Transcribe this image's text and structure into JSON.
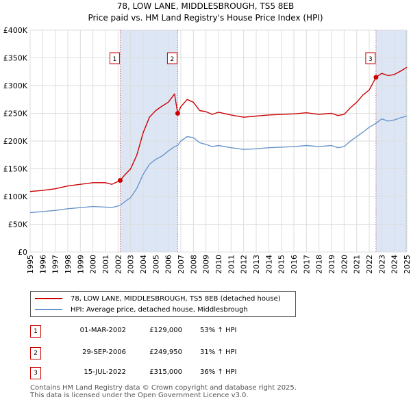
{
  "chart_data": {
    "type": "line",
    "title": "78, LOW LANE, MIDDLESBROUGH, TS5 8EB",
    "subtitle": "Price paid vs. HM Land Registry's House Price Index (HPI)",
    "xlim": [
      1995,
      2025
    ],
    "ylim": [
      0,
      400000
    ],
    "yticks": [
      0,
      50000,
      100000,
      150000,
      200000,
      250000,
      300000,
      350000,
      400000
    ],
    "ytick_labels": [
      "£0",
      "£50K",
      "£100K",
      "£150K",
      "£200K",
      "£250K",
      "£300K",
      "£350K",
      "£400K"
    ],
    "xticks": [
      1995,
      1996,
      1997,
      1998,
      1999,
      2000,
      2001,
      2002,
      2003,
      2004,
      2005,
      2006,
      2007,
      2008,
      2009,
      2010,
      2011,
      2012,
      2013,
      2014,
      2015,
      2016,
      2017,
      2018,
      2019,
      2020,
      2021,
      2022,
      2023,
      2024,
      2025
    ],
    "xtick_labels": [
      "1995",
      "1996",
      "1997",
      "1998",
      "1999",
      "2000",
      "2001",
      "2002",
      "2003",
      "2004",
      "2005",
      "2006",
      "2007",
      "2008",
      "2009",
      "2010",
      "2011",
      "2012",
      "2013",
      "2014",
      "2015",
      "2016",
      "2017",
      "2018",
      "2019",
      "2020",
      "2021",
      "2022",
      "2023",
      "2024",
      "2025"
    ],
    "grid": true,
    "shaded_regions": [
      {
        "from": 2002.17,
        "to": 2006.75
      },
      {
        "from": 2022.54,
        "to": 2025.0
      }
    ],
    "hatched_region": {
      "from": 2024.9,
      "to": 2025.0
    },
    "series": [
      {
        "name": "78, LOW LANE, MIDDLESBROUGH, TS5 8EB (detached house)",
        "color": "#cc0000",
        "x": [
          1995,
          1996,
          1997,
          1998,
          1999,
          2000,
          2001,
          2001.5,
          2002.17,
          2002.5,
          2003,
          2003.5,
          2004,
          2004.5,
          2005,
          2005.5,
          2006,
          2006.5,
          2006.75,
          2007,
          2007.5,
          2008,
          2008.5,
          2009,
          2009.5,
          2010,
          2011,
          2012,
          2013,
          2014,
          2015,
          2016,
          2017,
          2018,
          2019,
          2019.5,
          2020,
          2020.5,
          2021,
          2021.5,
          2022,
          2022.54,
          2023,
          2023.5,
          2024,
          2024.5,
          2025
        ],
        "y": [
          109000,
          111000,
          114000,
          119000,
          122000,
          125000,
          125000,
          122000,
          129000,
          138000,
          150000,
          175000,
          215000,
          243000,
          255000,
          263000,
          270000,
          285000,
          249950,
          262000,
          275000,
          270000,
          255000,
          253000,
          248000,
          252000,
          247000,
          243000,
          245000,
          247000,
          248000,
          249000,
          251000,
          248000,
          250000,
          246000,
          248000,
          260000,
          270000,
          283000,
          292000,
          315000,
          322000,
          318000,
          320000,
          326000,
          333000
        ]
      },
      {
        "name": "HPI: Average price, detached house, Middlesbrough",
        "color": "#6a96cc",
        "x": [
          1995,
          1996,
          1997,
          1998,
          1999,
          2000,
          2001,
          2001.5,
          2002.17,
          2002.5,
          2003,
          2003.5,
          2004,
          2004.5,
          2005,
          2005.5,
          2006,
          2006.5,
          2006.75,
          2007,
          2007.5,
          2008,
          2008.5,
          2009,
          2009.5,
          2010,
          2011,
          2012,
          2013,
          2014,
          2015,
          2016,
          2017,
          2018,
          2019,
          2019.5,
          2020,
          2020.5,
          2021,
          2021.5,
          2022,
          2022.54,
          2023,
          2023.5,
          2024,
          2024.5,
          2025
        ],
        "y": [
          71000,
          73000,
          75000,
          78000,
          80000,
          82000,
          81000,
          80000,
          84000,
          90000,
          98000,
          115000,
          140000,
          158000,
          167000,
          173000,
          182000,
          190000,
          192000,
          200000,
          208000,
          206000,
          197000,
          194000,
          190000,
          192000,
          188000,
          185000,
          186000,
          188000,
          189000,
          190000,
          192000,
          190000,
          192000,
          188000,
          190000,
          200000,
          208000,
          216000,
          225000,
          232000,
          240000,
          236000,
          238000,
          242000,
          245000
        ]
      }
    ],
    "transactions": [
      {
        "num": "1",
        "x": 2002.17,
        "y": 129000
      },
      {
        "num": "2",
        "x": 2006.75,
        "y": 249950
      },
      {
        "num": "3",
        "x": 2022.54,
        "y": 315000
      }
    ]
  },
  "legend": {
    "property": "78, LOW LANE, MIDDLESBROUGH, TS5 8EB (detached house)",
    "hpi": "HPI: Average price, detached house, Middlesbrough"
  },
  "colors": {
    "property": "#cc0000",
    "hpi": "#6a96cc",
    "shade": "#dde6f5",
    "grid": "#dddddd"
  },
  "table": [
    {
      "num": "1",
      "date": "01-MAR-2002",
      "price": "£129,000",
      "hpi": "53% ↑ HPI"
    },
    {
      "num": "2",
      "date": "29-SEP-2006",
      "price": "£249,950",
      "hpi": "31% ↑ HPI"
    },
    {
      "num": "3",
      "date": "15-JUL-2022",
      "price": "£315,000",
      "hpi": "36% ↑ HPI"
    }
  ],
  "footer": {
    "line1": "Contains HM Land Registry data © Crown copyright and database right 2025.",
    "line2": "This data is licensed under the Open Government Licence v3.0."
  }
}
